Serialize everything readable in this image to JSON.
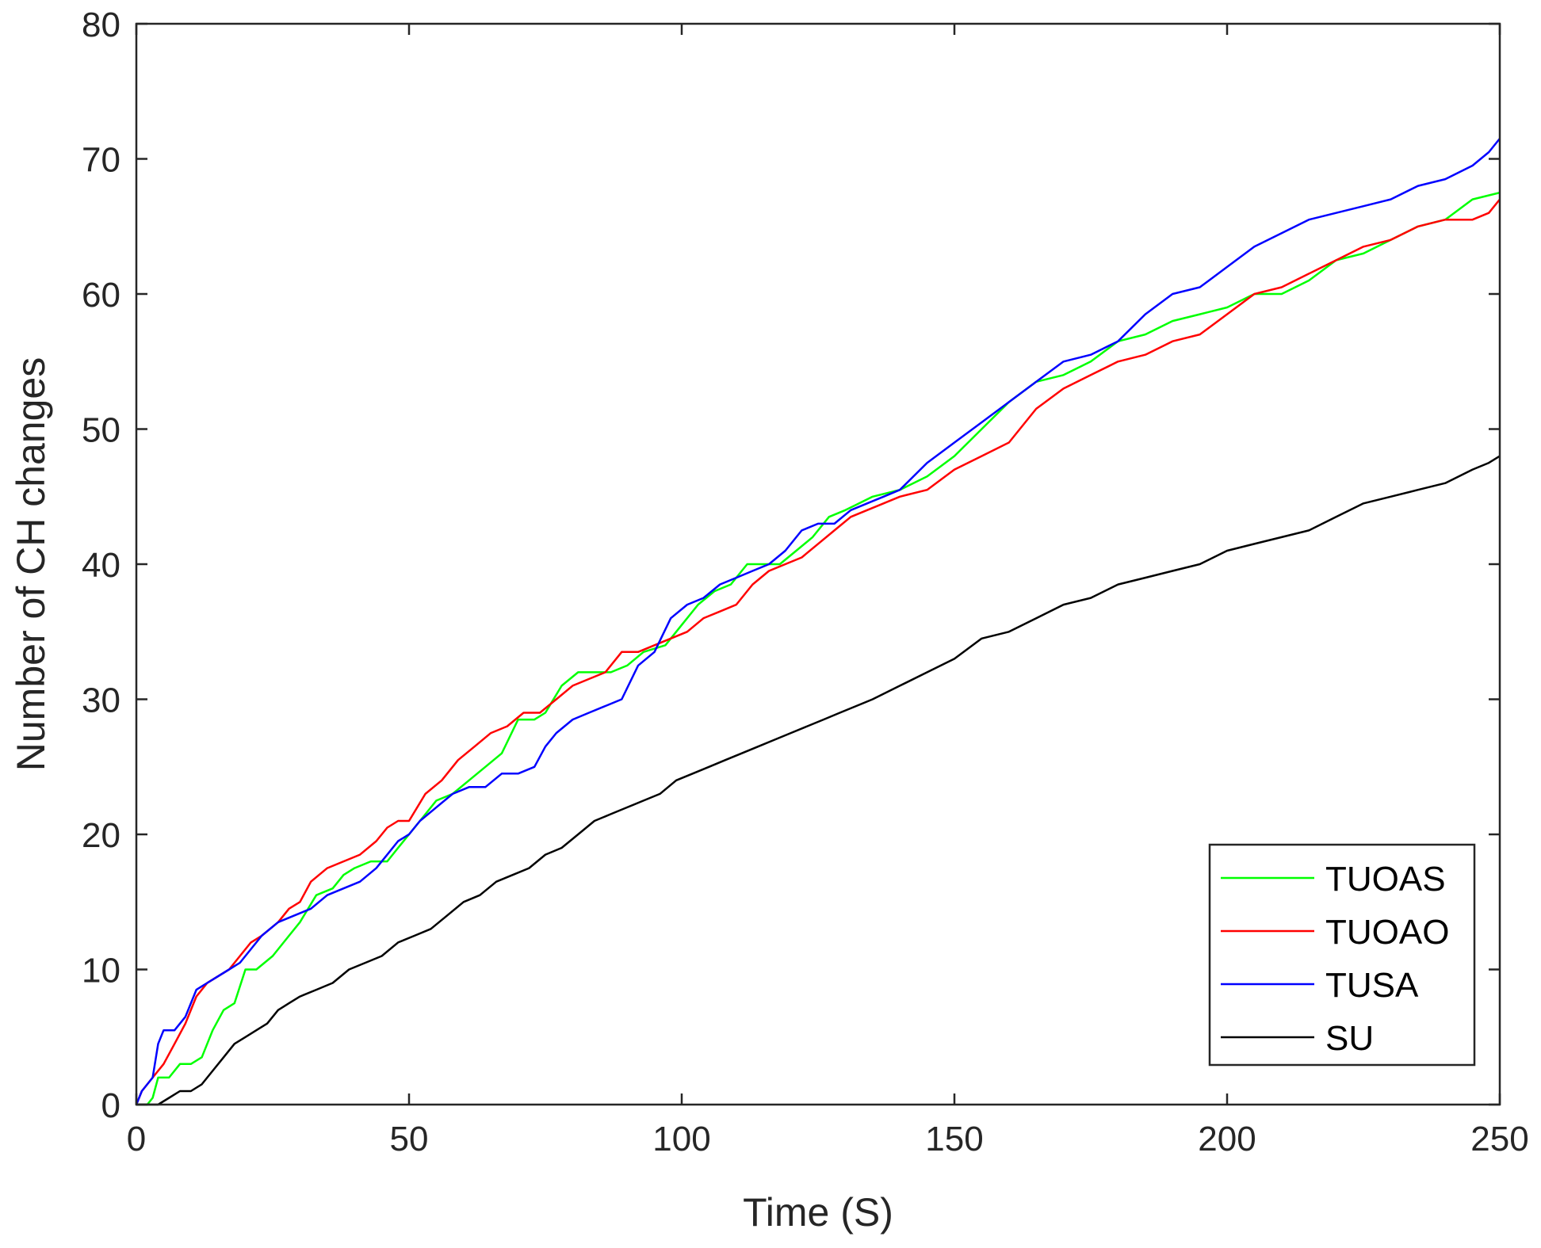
{
  "chart_data": {
    "type": "line",
    "title": "",
    "xlabel": "Time (S)",
    "ylabel": "Number of CH changes",
    "xlim": [
      0,
      250
    ],
    "ylim": [
      0,
      80
    ],
    "xticks": [
      0,
      50,
      100,
      150,
      200,
      250
    ],
    "yticks": [
      0,
      10,
      20,
      30,
      40,
      50,
      60,
      70,
      80
    ],
    "grid": false,
    "legend_position": "bottom-right",
    "series": [
      {
        "name": "TUOAS",
        "color": "#00ff00",
        "x": [
          0,
          2,
          3,
          4,
          6,
          8,
          10,
          12,
          14,
          16,
          18,
          20,
          22,
          25,
          28,
          30,
          33,
          36,
          38,
          40,
          43,
          46,
          48,
          50,
          52,
          55,
          58,
          61,
          64,
          67,
          70,
          73,
          75,
          78,
          81,
          84,
          87,
          90,
          93,
          97,
          100,
          103,
          106,
          109,
          112,
          115,
          118,
          121,
          124,
          127,
          130,
          135,
          140,
          145,
          150,
          155,
          160,
          165,
          170,
          175,
          180,
          185,
          190,
          195,
          200,
          205,
          210,
          215,
          220,
          225,
          230,
          235,
          240,
          245,
          250
        ],
        "y": [
          0,
          0,
          0.5,
          2,
          2,
          3,
          3,
          3.5,
          5.5,
          7,
          7.5,
          10,
          10,
          11,
          12.5,
          13.5,
          15.5,
          16,
          17,
          17.5,
          18,
          18,
          19,
          20,
          21,
          22.5,
          23,
          24,
          25,
          26,
          28.5,
          28.5,
          29,
          31,
          32,
          32,
          32,
          32.5,
          33.5,
          34,
          35.5,
          37,
          38,
          38.5,
          40,
          40,
          40,
          41,
          42,
          43.5,
          44,
          45,
          45.5,
          46.5,
          48,
          50,
          52,
          53.5,
          54,
          55,
          56.5,
          57,
          58,
          58.5,
          59,
          60,
          60,
          61,
          62.5,
          63,
          64,
          65,
          65.5,
          67,
          67.5
        ]
      },
      {
        "name": "TUOAO",
        "color": "#ff0000",
        "x": [
          0,
          1,
          2,
          3,
          5,
          7,
          9,
          11,
          13,
          15,
          17,
          19,
          21,
          23,
          26,
          28,
          30,
          32,
          35,
          38,
          41,
          44,
          46,
          48,
          50,
          53,
          56,
          59,
          62,
          65,
          68,
          71,
          74,
          77,
          80,
          83,
          86,
          89,
          92,
          95,
          98,
          101,
          104,
          107,
          110,
          113,
          116,
          119,
          122,
          125,
          128,
          131,
          134,
          137,
          140,
          145,
          150,
          155,
          160,
          165,
          170,
          175,
          180,
          185,
          190,
          195,
          200,
          205,
          210,
          215,
          220,
          225,
          230,
          235,
          240,
          245,
          248,
          250
        ],
        "y": [
          0,
          1,
          1.5,
          2,
          3,
          4.5,
          6,
          8,
          9,
          9.5,
          10,
          11,
          12,
          12.5,
          13.5,
          14.5,
          15,
          16.5,
          17.5,
          18,
          18.5,
          19.5,
          20.5,
          21,
          21,
          23,
          24,
          25.5,
          26.5,
          27.5,
          28,
          29,
          29,
          30,
          31,
          31.5,
          32,
          33.5,
          33.5,
          34,
          34.5,
          35,
          36,
          36.5,
          37,
          38.5,
          39.5,
          40,
          40.5,
          41.5,
          42.5,
          43.5,
          44,
          44.5,
          45,
          45.5,
          47,
          48,
          49,
          51.5,
          53,
          54,
          55,
          55.5,
          56.5,
          57,
          58.5,
          60,
          60.5,
          61.5,
          62.5,
          63.5,
          64,
          65,
          65.5,
          65.5,
          66,
          67
        ]
      },
      {
        "name": "TUSA",
        "color": "#0000ff",
        "x": [
          0,
          1,
          2,
          3,
          4,
          5,
          7,
          9,
          11,
          13,
          15,
          17,
          19,
          21,
          23,
          26,
          29,
          32,
          35,
          38,
          41,
          44,
          46,
          48,
          50,
          52,
          55,
          58,
          61,
          64,
          67,
          70,
          73,
          75,
          77,
          80,
          83,
          86,
          89,
          92,
          95,
          98,
          101,
          104,
          107,
          110,
          113,
          116,
          119,
          122,
          125,
          128,
          131,
          134,
          137,
          140,
          145,
          150,
          155,
          160,
          165,
          170,
          175,
          180,
          185,
          190,
          195,
          200,
          205,
          210,
          215,
          220,
          225,
          230,
          235,
          240,
          245,
          248,
          250
        ],
        "y": [
          0,
          1,
          1.5,
          2,
          4.5,
          5.5,
          5.5,
          6.5,
          8.5,
          9,
          9.5,
          10,
          10.5,
          11.5,
          12.5,
          13.5,
          14,
          14.5,
          15.5,
          16,
          16.5,
          17.5,
          18.5,
          19.5,
          20,
          21,
          22,
          23,
          23.5,
          23.5,
          24.5,
          24.5,
          25,
          26.5,
          27.5,
          28.5,
          29,
          29.5,
          30,
          32.5,
          33.5,
          36,
          37,
          37.5,
          38.5,
          39,
          39.5,
          40,
          41,
          42.5,
          43,
          43,
          44,
          44.5,
          45,
          45.5,
          47.5,
          49,
          50.5,
          52,
          53.5,
          55,
          55.5,
          56.5,
          58.5,
          60,
          60.5,
          62,
          63.5,
          64.5,
          65.5,
          66,
          66.5,
          67,
          68,
          68.5,
          69.5,
          70.5,
          71.5
        ]
      },
      {
        "name": "SU",
        "color": "#000000",
        "x": [
          0,
          2,
          4,
          6,
          8,
          10,
          12,
          14,
          16,
          18,
          20,
          22,
          24,
          26,
          28,
          30,
          33,
          36,
          39,
          42,
          45,
          48,
          51,
          54,
          57,
          60,
          63,
          66,
          69,
          72,
          75,
          78,
          81,
          84,
          87,
          90,
          93,
          96,
          99,
          102,
          105,
          108,
          111,
          114,
          117,
          120,
          123,
          126,
          129,
          132,
          135,
          140,
          145,
          150,
          155,
          160,
          165,
          170,
          175,
          180,
          185,
          190,
          195,
          200,
          205,
          210,
          215,
          220,
          225,
          230,
          235,
          240,
          245,
          248,
          250
        ],
        "y": [
          0,
          0,
          0,
          0.5,
          1,
          1,
          1.5,
          2.5,
          3.5,
          4.5,
          5,
          5.5,
          6,
          7,
          7.5,
          8,
          8.5,
          9,
          10,
          10.5,
          11,
          12,
          12.5,
          13,
          14,
          15,
          15.5,
          16.5,
          17,
          17.5,
          18.5,
          19,
          20,
          21,
          21.5,
          22,
          22.5,
          23,
          24,
          24.5,
          25,
          25.5,
          26,
          26.5,
          27,
          27.5,
          28,
          28.5,
          29,
          29.5,
          30,
          31,
          32,
          33,
          34.5,
          35,
          36,
          37,
          37.5,
          38.5,
          39,
          39.5,
          40,
          41,
          41.5,
          42,
          42.5,
          43.5,
          44.5,
          45,
          45.5,
          46,
          47,
          47.5,
          48
        ]
      }
    ]
  }
}
